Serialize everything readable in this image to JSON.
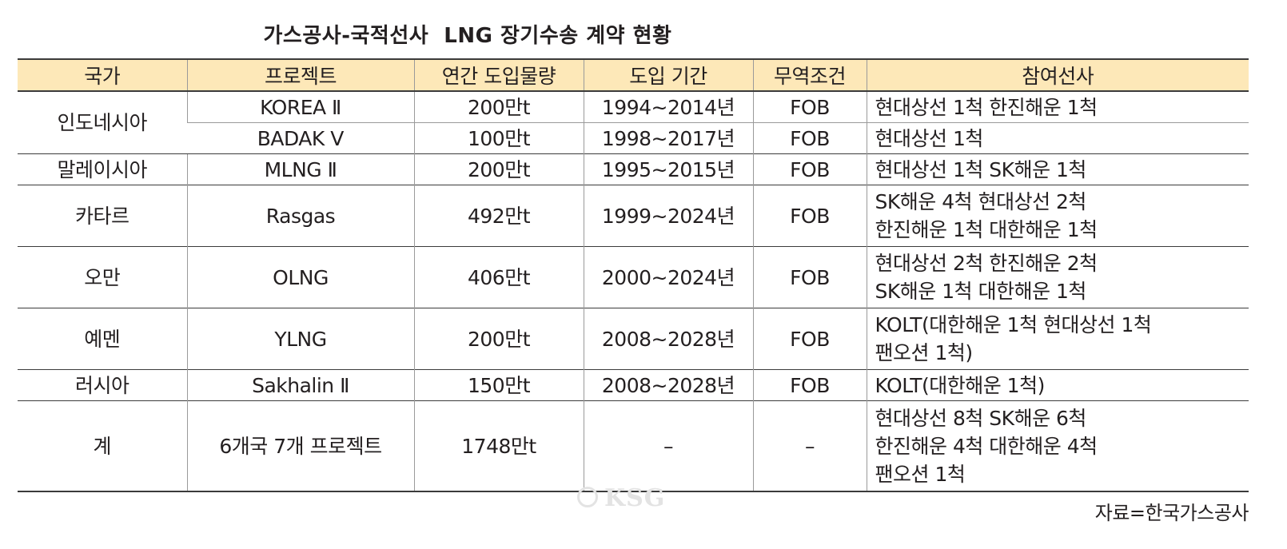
{
  "title": "가스공사-국적선사  LNG 장기수송 계약 현황",
  "headers": [
    "국가",
    "프로젝트",
    "연간 도입물량",
    "도입 기간",
    "무역조건",
    "참여선사"
  ],
  "rows": [
    {
      "country": "인도네시아",
      "project": "KOREA Ⅱ",
      "volume": "200만t",
      "period": "1994∼2014년",
      "terms": "FOB",
      "carriers": [
        "현대상선 1척 한진해운 1척"
      ]
    },
    {
      "country": "",
      "project": "BADAK Ⅴ",
      "volume": "100만t",
      "period": "1998∼2017년",
      "terms": "FOB",
      "carriers": [
        "현대상선 1척"
      ]
    },
    {
      "country": "말레이시아",
      "project": "MLNG Ⅱ",
      "volume": "200만t",
      "period": "1995∼2015년",
      "terms": "FOB",
      "carriers": [
        "현대상선 1척 SK해운 1척"
      ]
    },
    {
      "country": "카타르",
      "project": "Rasgas",
      "volume": "492만t",
      "period": "1999∼2024년",
      "terms": "FOB",
      "carriers": [
        "SK해운 4척 현대상선 2척",
        "한진해운 1척 대한해운 1척"
      ]
    },
    {
      "country": "오만",
      "project": "OLNG",
      "volume": "406만t",
      "period": "2000∼2024년",
      "terms": "FOB",
      "carriers": [
        "현대상선 2척 한진해운 2척",
        "SK해운 1척 대한해운 1척"
      ]
    },
    {
      "country": "예멘",
      "project": "YLNG",
      "volume": "200만t",
      "period": "2008∼2028년",
      "terms": "FOB",
      "carriers": [
        "KOLT(대한해운 1척 현대상선 1척",
        "팬오션 1척)"
      ]
    },
    {
      "country": "러시아",
      "project": "Sakhalin Ⅱ",
      "volume": "150만t",
      "period": "2008∼2028년",
      "terms": "FOB",
      "carriers": [
        "KOLT(대한해운 1척)"
      ]
    },
    {
      "country": "계",
      "project": "6개국 7개 프로젝트",
      "volume": "1748만t",
      "period": "–",
      "terms": "–",
      "carriers": [
        "현대상선 8척 SK해운 6척",
        "한진해운 4척 대한해운 4척",
        "팬오션 1척"
      ]
    }
  ],
  "watermark": "KSG",
  "source": "자료=한국가스공사"
}
